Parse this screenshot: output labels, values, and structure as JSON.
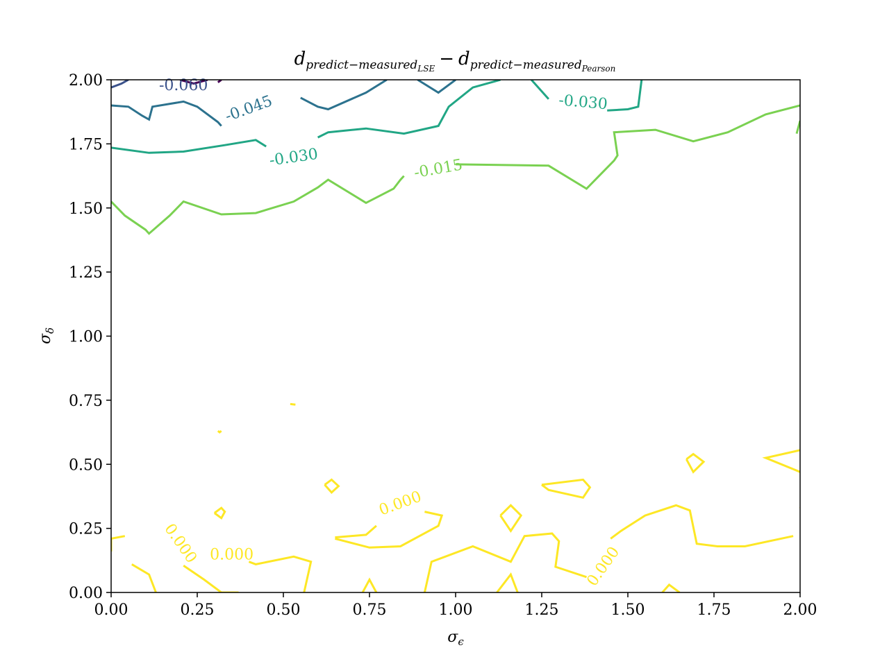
{
  "chart_data": {
    "type": "contour",
    "title": {
      "base1": "d",
      "sub1": "predict−measured",
      "subsub1": "LSE",
      "minus": "−",
      "base2": "d",
      "sub2": "predict−measured",
      "subsub2": "Pearson"
    },
    "xlabel": {
      "base": "σ",
      "sub": "ϵ"
    },
    "ylabel": {
      "base": "σ",
      "sub": "δ"
    },
    "xlim": [
      0,
      2
    ],
    "ylim": [
      0,
      2
    ],
    "xticks": [
      "0.00",
      "0.25",
      "0.50",
      "0.75",
      "1.00",
      "1.25",
      "1.50",
      "1.75",
      "2.00"
    ],
    "yticks": [
      "0.00",
      "0.25",
      "0.50",
      "0.75",
      "1.00",
      "1.25",
      "1.50",
      "1.75",
      "2.00"
    ],
    "grid": false,
    "colors": {
      "-0.075": "#440154",
      "-0.060": "#3b528b",
      "-0.045": "#2c728e",
      "-0.030": "#21a685",
      "-0.015": "#7ad151",
      "0.000": "#fde725"
    },
    "contours": [
      {
        "level": "-0.075",
        "color": "#440154",
        "segments": [
          [
            [
              0.2,
              2.0
            ],
            [
              0.24,
              1.985
            ],
            [
              0.28,
              2.0
            ]
          ],
          [
            [
              0.31,
              1.99
            ],
            [
              0.32,
              2.0
            ]
          ]
        ]
      },
      {
        "level": "-0.060",
        "color": "#3b528b",
        "segments": [
          [
            [
              0.0,
              1.97
            ],
            [
              0.03,
              1.985
            ],
            [
              0.05,
              2.0
            ]
          ]
        ]
      },
      {
        "level": "-0.045",
        "color": "#2c728e",
        "segments": [
          [
            [
              0.0,
              1.9
            ],
            [
              0.05,
              1.895
            ],
            [
              0.09,
              1.86
            ],
            [
              0.11,
              1.845
            ],
            [
              0.12,
              1.895
            ],
            [
              0.21,
              1.915
            ],
            [
              0.25,
              1.895
            ],
            [
              0.31,
              1.835
            ],
            [
              0.32,
              1.82
            ]
          ],
          [
            [
              0.55,
              1.93
            ],
            [
              0.6,
              1.895
            ],
            [
              0.63,
              1.885
            ],
            [
              0.74,
              1.95
            ],
            [
              0.8,
              2.0
            ]
          ],
          [
            [
              0.89,
              2.0
            ],
            [
              0.95,
              1.95
            ],
            [
              1.0,
              2.0
            ]
          ]
        ]
      },
      {
        "level": "-0.030",
        "color": "#21a685",
        "segments": [
          [
            [
              0.0,
              1.735
            ],
            [
              0.11,
              1.715
            ],
            [
              0.21,
              1.72
            ],
            [
              0.33,
              1.745
            ],
            [
              0.42,
              1.765
            ],
            [
              0.45,
              1.74
            ]
          ],
          [
            [
              0.6,
              1.775
            ],
            [
              0.63,
              1.795
            ],
            [
              0.74,
              1.81
            ],
            [
              0.85,
              1.79
            ],
            [
              0.95,
              1.82
            ],
            [
              0.98,
              1.895
            ],
            [
              1.05,
              1.97
            ],
            [
              1.13,
              2.0
            ]
          ],
          [
            [
              1.22,
              2.0
            ],
            [
              1.27,
              1.925
            ]
          ],
          [
            [
              1.44,
              1.88
            ],
            [
              1.5,
              1.885
            ],
            [
              1.53,
              1.895
            ],
            [
              1.54,
              2.0
            ]
          ]
        ]
      },
      {
        "level": "-0.015",
        "color": "#7ad151",
        "segments": [
          [
            [
              0.0,
              1.525
            ],
            [
              0.04,
              1.47
            ],
            [
              0.1,
              1.415
            ],
            [
              0.11,
              1.4
            ],
            [
              0.17,
              1.47
            ],
            [
              0.21,
              1.525
            ],
            [
              0.32,
              1.475
            ],
            [
              0.42,
              1.48
            ],
            [
              0.53,
              1.525
            ],
            [
              0.6,
              1.58
            ],
            [
              0.63,
              1.61
            ],
            [
              0.74,
              1.52
            ],
            [
              0.82,
              1.575
            ],
            [
              0.84,
              1.61
            ],
            [
              0.85,
              1.625
            ]
          ],
          [
            [
              1.0,
              1.67
            ],
            [
              1.27,
              1.665
            ],
            [
              1.38,
              1.575
            ],
            [
              1.46,
              1.685
            ],
            [
              1.47,
              1.705
            ],
            [
              1.46,
              1.795
            ],
            [
              1.58,
              1.805
            ],
            [
              1.69,
              1.76
            ],
            [
              1.79,
              1.795
            ],
            [
              1.9,
              1.865
            ],
            [
              2.0,
              1.9
            ]
          ],
          [
            [
              1.99,
              1.79
            ],
            [
              2.0,
              1.84
            ]
          ]
        ]
      },
      {
        "level": "0.000",
        "color": "#fde725",
        "segments": [
          [
            [
              0.52,
              0.735
            ],
            [
              0.535,
              0.733
            ]
          ],
          [
            [
              0.31,
              0.63
            ],
            [
              0.315,
              0.625
            ],
            [
              0.32,
              0.63
            ]
          ],
          [
            [
              0.62,
              0.42
            ],
            [
              0.64,
              0.44
            ],
            [
              0.66,
              0.415
            ],
            [
              0.64,
              0.39
            ],
            [
              0.62,
              0.42
            ]
          ],
          [
            [
              0.3,
              0.31
            ],
            [
              0.32,
              0.33
            ],
            [
              0.33,
              0.315
            ],
            [
              0.32,
              0.29
            ],
            [
              0.3,
              0.31
            ]
          ],
          [
            [
              1.13,
              0.3
            ],
            [
              1.16,
              0.34
            ],
            [
              1.19,
              0.3
            ],
            [
              1.16,
              0.24
            ],
            [
              1.13,
              0.3
            ]
          ],
          [
            [
              1.67,
              0.52
            ],
            [
              1.69,
              0.54
            ],
            [
              1.72,
              0.51
            ],
            [
              1.69,
              0.47
            ],
            [
              1.67,
              0.52
            ]
          ],
          [
            [
              1.25,
              0.42
            ],
            [
              1.37,
              0.44
            ],
            [
              1.39,
              0.41
            ],
            [
              1.37,
              0.37
            ],
            [
              1.27,
              0.4
            ],
            [
              1.25,
              0.42
            ]
          ],
          [
            [
              2.0,
              0.555
            ],
            [
              1.9,
              0.525
            ],
            [
              2.0,
              0.47
            ]
          ],
          [
            [
              0.0,
              0.16
            ],
            [
              0.0,
              0.21
            ],
            [
              0.04,
              0.22
            ]
          ],
          [
            [
              0.06,
              0.11
            ],
            [
              0.11,
              0.07
            ],
            [
              0.13,
              0.0
            ]
          ],
          [
            [
              0.21,
              0.105
            ],
            [
              0.27,
              0.05
            ],
            [
              0.32,
              0.0
            ],
            [
              0.37,
              0.0
            ]
          ],
          [
            [
              0.4,
              0.12
            ],
            [
              0.42,
              0.11
            ],
            [
              0.53,
              0.14
            ],
            [
              0.58,
              0.12
            ],
            [
              0.56,
              0.0
            ]
          ],
          [
            [
              0.65,
              0.215
            ],
            [
              0.74,
              0.225
            ],
            [
              0.77,
              0.26
            ]
          ],
          [
            [
              0.73,
              0.0
            ],
            [
              0.75,
              0.05
            ],
            [
              0.77,
              0.0
            ]
          ],
          [
            [
              0.91,
              0.315
            ],
            [
              0.96,
              0.3
            ],
            [
              0.95,
              0.26
            ],
            [
              0.84,
              0.18
            ],
            [
              0.75,
              0.175
            ],
            [
              0.65,
              0.21
            ]
          ],
          [
            [
              0.91,
              0.0
            ],
            [
              0.93,
              0.12
            ],
            [
              1.05,
              0.18
            ],
            [
              1.16,
              0.12
            ],
            [
              1.2,
              0.22
            ],
            [
              1.28,
              0.23
            ],
            [
              1.3,
              0.2
            ],
            [
              1.29,
              0.1
            ],
            [
              1.38,
              0.06
            ]
          ],
          [
            [
              1.12,
              0.0
            ],
            [
              1.16,
              0.07
            ],
            [
              1.18,
              0.0
            ]
          ],
          [
            [
              1.45,
              0.21
            ],
            [
              1.48,
              0.24
            ],
            [
              1.55,
              0.3
            ],
            [
              1.64,
              0.34
            ],
            [
              1.68,
              0.32
            ],
            [
              1.7,
              0.19
            ],
            [
              1.76,
              0.18
            ],
            [
              1.84,
              0.18
            ],
            [
              1.98,
              0.22
            ]
          ],
          [
            [
              1.6,
              0.0
            ],
            [
              1.62,
              0.03
            ],
            [
              1.65,
              0.0
            ]
          ],
          [
            [
              2.0,
              0.33
            ]
          ]
        ]
      }
    ],
    "labels": [
      {
        "text": "-0.060",
        "x": 0.21,
        "y": 1.975,
        "angle": 0,
        "color": "#3b528b"
      },
      {
        "text": "-0.045",
        "x": 0.4,
        "y": 1.885,
        "angle": -20,
        "color": "#2c728e"
      },
      {
        "text": "-0.030",
        "x": 0.53,
        "y": 1.695,
        "angle": -8,
        "color": "#21a685"
      },
      {
        "text": "-0.030",
        "x": 1.37,
        "y": 1.91,
        "angle": 5,
        "color": "#21a685"
      },
      {
        "text": "-0.015",
        "x": 0.95,
        "y": 1.65,
        "angle": -10,
        "color": "#7ad151"
      },
      {
        "text": "0.000",
        "x": 0.84,
        "y": 0.345,
        "angle": -20,
        "color": "#fde725"
      },
      {
        "text": "0.000",
        "x": 0.2,
        "y": 0.19,
        "angle": 55,
        "color": "#fde725"
      },
      {
        "text": "0.000",
        "x": 0.35,
        "y": 0.145,
        "angle": 0,
        "color": "#fde725"
      },
      {
        "text": "0.000",
        "x": 1.43,
        "y": 0.1,
        "angle": -55,
        "color": "#fde725"
      }
    ]
  }
}
